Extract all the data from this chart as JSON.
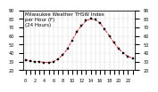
{
  "title": "Milwaukee Weather THSW Index\nper Hour (F)\n(24 Hours)",
  "hours": [
    0,
    1,
    2,
    3,
    4,
    5,
    6,
    7,
    8,
    9,
    10,
    11,
    12,
    13,
    14,
    15,
    16,
    17,
    18,
    19,
    20,
    21,
    22,
    23
  ],
  "values": [
    32,
    31,
    30,
    30,
    29,
    29,
    30,
    33,
    38,
    45,
    55,
    65,
    72,
    78,
    80,
    79,
    75,
    68,
    60,
    52,
    45,
    40,
    36,
    34
  ],
  "line_color": "#dd0000",
  "marker_color": "#000000",
  "bg_color": "#ffffff",
  "grid_color": "#aaaaaa",
  "ylim": [
    20,
    90
  ],
  "yticks": [
    20,
    30,
    40,
    50,
    60,
    70,
    80,
    90
  ],
  "ylabel_fontsize": 4,
  "title_fontsize": 4,
  "tick_fontsize": 3.5
}
